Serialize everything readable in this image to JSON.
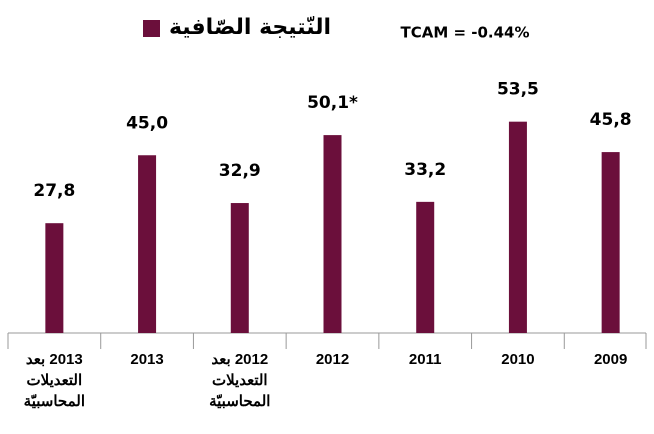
{
  "chart_data": {
    "type": "bar",
    "categories": [
      "2013 بعد\nالتعديلات\nالمحاسبيّة",
      "2013",
      "2012 بعد\nالتعديلات\nالمحاسبيّة",
      "2012",
      "2011",
      "2010",
      "2009"
    ],
    "series": [
      {
        "name": "النّتيجة الصّافية",
        "color": "#6b0f3b",
        "values": [
          27.8,
          45.0,
          32.9,
          50.1,
          33.2,
          53.5,
          45.8
        ],
        "value_labels": [
          "27,8",
          "45,0",
          "32,9",
          "50,1*",
          "33,2",
          "53,5",
          "45,8"
        ]
      }
    ],
    "annotation": "TCAM = -0.44%",
    "ylim": [
      0,
      60
    ]
  }
}
